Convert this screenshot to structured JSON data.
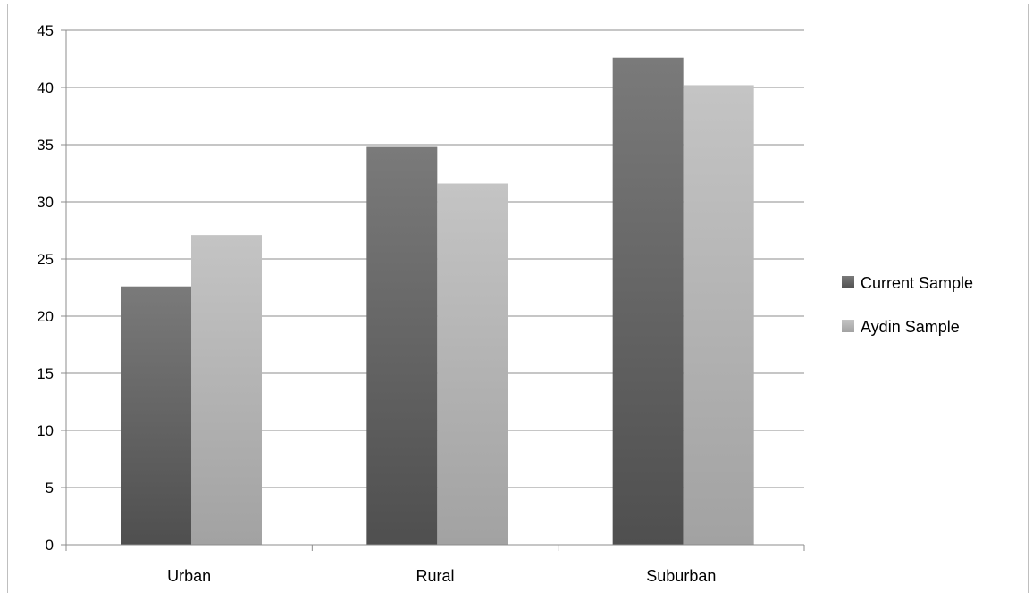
{
  "chart_data": {
    "type": "bar",
    "categories": [
      "Urban",
      "Rural",
      "Suburban"
    ],
    "series": [
      {
        "name": "Current Sample",
        "values": [
          22.6,
          34.8,
          42.6
        ],
        "color": "#5e5e5e"
      },
      {
        "name": "Aydin Sample",
        "values": [
          27.1,
          31.6,
          40.2
        ],
        "color": "#b3b3b3"
      }
    ],
    "ylim": [
      0,
      45
    ],
    "yticks": [
      "0",
      "5",
      "10",
      "15",
      "20",
      "25",
      "30",
      "35",
      "40",
      "45"
    ],
    "grid": true,
    "legend_position": "right"
  }
}
